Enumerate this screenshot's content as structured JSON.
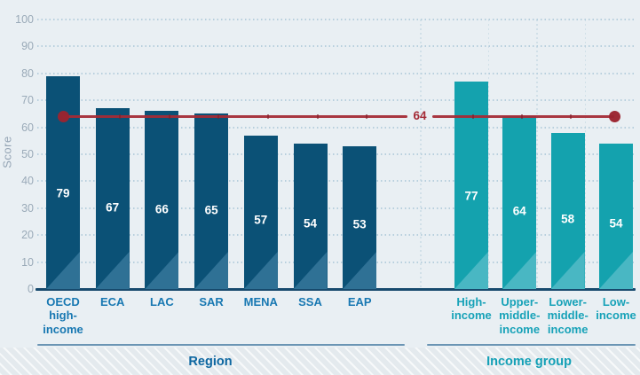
{
  "chart_data": {
    "type": "bar",
    "title": "",
    "ylabel": "Score",
    "ylim": [
      0,
      100
    ],
    "yticks": [
      100,
      90,
      80,
      70,
      60,
      50,
      40,
      30,
      20,
      10,
      0
    ],
    "grid": "horizontal-dotted",
    "reference_line": {
      "value": 64,
      "label": "64",
      "color": "#a42b36"
    },
    "groups": [
      {
        "name": "Region",
        "bar_color": "#0b5176",
        "bar_accent_color": "#2f7195",
        "label_color": "#1878b2",
        "title_color": "#0d67a1",
        "categories": [
          "OECD high-income",
          "ECA",
          "LAC",
          "SAR",
          "MENA",
          "SSA",
          "EAP"
        ],
        "label_lines": [
          [
            "OECD",
            "high-",
            "income"
          ],
          [
            "ECA"
          ],
          [
            "LAC"
          ],
          [
            "SAR"
          ],
          [
            "MENA"
          ],
          [
            "SSA"
          ],
          [
            "EAP"
          ]
        ],
        "values": [
          79,
          67,
          66,
          65,
          57,
          54,
          53
        ]
      },
      {
        "name": "Income group",
        "bar_color": "#14a2ae",
        "bar_accent_color": "#49b7c3",
        "label_color": "#17a2b8",
        "title_color": "#13a0b6",
        "categories": [
          "High-income",
          "Upper-middle-income",
          "Lower-middle-income",
          "Low-income"
        ],
        "label_lines": [
          [
            "High-",
            "income"
          ],
          [
            "Upper-",
            "middle-",
            "income"
          ],
          [
            "Lower-",
            "middle-",
            "income"
          ],
          [
            "Low-",
            "income"
          ]
        ],
        "values": [
          77,
          64,
          58,
          54
        ]
      }
    ]
  },
  "colors": {
    "background": "#e9eff3",
    "gridline": "#b7cfdd",
    "axis_line": "#174a6d",
    "y_tick_text": "#9aaab8",
    "y_axis_title_text": "#94a4b4",
    "group_divider": "#6b95b4",
    "value_label_text": "#ffffff"
  }
}
